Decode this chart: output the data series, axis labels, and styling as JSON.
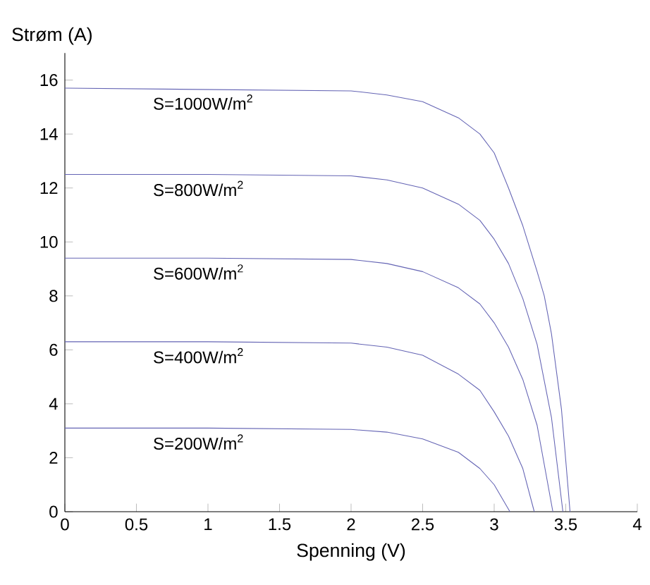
{
  "chart_data": {
    "type": "line",
    "xlabel": "Spenning (V)",
    "ylabel": "Strøm (A)",
    "xlim": [
      0,
      4
    ],
    "ylim": [
      0,
      17
    ],
    "xticks": [
      0,
      0.5,
      1,
      1.5,
      2,
      2.5,
      3,
      3.5,
      4
    ],
    "yticks": [
      0,
      2,
      4,
      6,
      8,
      10,
      12,
      14,
      16
    ],
    "grid": false,
    "marker": "none",
    "line_style": "solid",
    "series": [
      {
        "name": "S=1000W/m$^{2}$",
        "color": "#6464b4",
        "x": [
          0,
          1,
          2,
          2.25,
          2.5,
          2.75,
          2.9,
          3.0,
          3.1,
          3.2,
          3.3,
          3.35,
          3.4,
          3.47,
          3.53
        ],
        "values": [
          15.7,
          15.65,
          15.6,
          15.45,
          15.2,
          14.6,
          14.0,
          13.3,
          12.0,
          10.6,
          8.9,
          8.0,
          6.6,
          3.8,
          0
        ]
      },
      {
        "name": "S=800W/m$^{2}$",
        "color": "#6464b4",
        "x": [
          0,
          1,
          2,
          2.25,
          2.5,
          2.75,
          2.9,
          3.0,
          3.1,
          3.2,
          3.3,
          3.4,
          3.48
        ],
        "values": [
          12.5,
          12.5,
          12.45,
          12.3,
          12.0,
          11.4,
          10.8,
          10.1,
          9.2,
          7.9,
          6.2,
          3.5,
          0
        ]
      },
      {
        "name": "S=600W/m$^{2}$",
        "color": "#6464b4",
        "x": [
          0,
          1,
          2,
          2.25,
          2.5,
          2.75,
          2.9,
          3.0,
          3.1,
          3.2,
          3.3,
          3.41
        ],
        "values": [
          9.4,
          9.4,
          9.35,
          9.2,
          8.9,
          8.3,
          7.7,
          7.0,
          6.1,
          4.9,
          3.2,
          0
        ]
      },
      {
        "name": "S=400W/m$^{2}$",
        "color": "#6464b4",
        "x": [
          0,
          1,
          2,
          2.25,
          2.5,
          2.75,
          2.9,
          3.0,
          3.1,
          3.2,
          3.28
        ],
        "values": [
          6.3,
          6.3,
          6.25,
          6.1,
          5.8,
          5.1,
          4.5,
          3.7,
          2.8,
          1.6,
          0
        ]
      },
      {
        "name": "S=200W/m$^{2}$",
        "color": "#6464b4",
        "x": [
          0,
          1,
          2,
          2.25,
          2.5,
          2.75,
          2.9,
          3.0,
          3.11
        ],
        "values": [
          3.1,
          3.1,
          3.05,
          2.95,
          2.7,
          2.2,
          1.6,
          1.0,
          0
        ]
      }
    ]
  }
}
